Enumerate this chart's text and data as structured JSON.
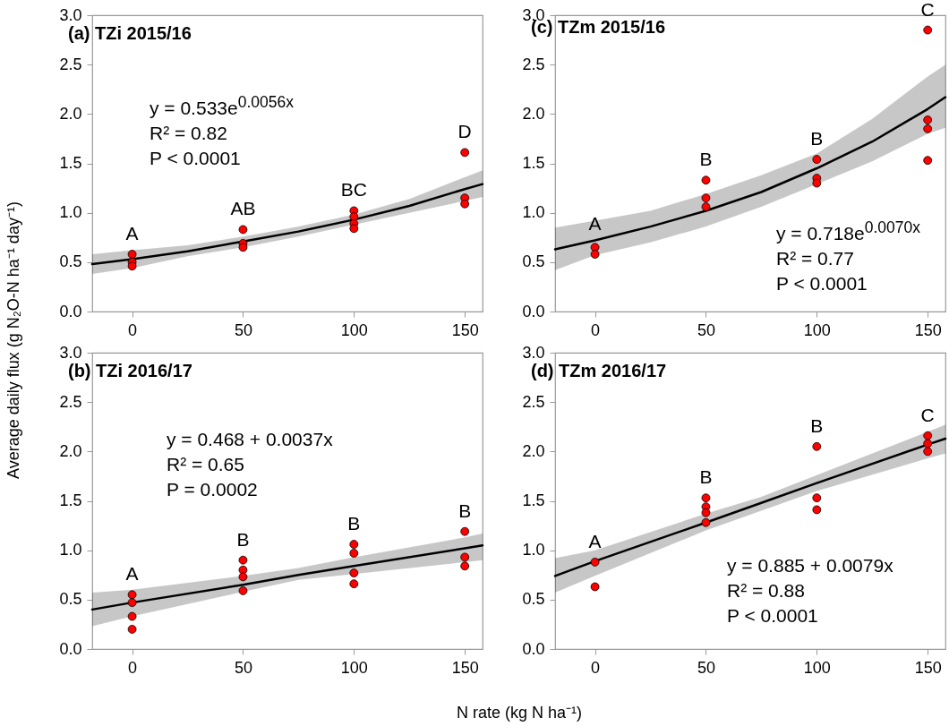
{
  "chart_data": [
    {
      "type": "scatter",
      "title": "(a) TZi 2015/16",
      "ylabel": "Average daily flux (g N₂O-N ha⁻¹ day⁻¹)",
      "xlim": [
        -18,
        158
      ],
      "xticks": [
        0,
        50,
        100,
        150
      ],
      "ylim": [
        0,
        3
      ],
      "yticks": [
        {
          "value": 0,
          "label": "0.0"
        },
        {
          "value": 0.5,
          "label": "0.5"
        },
        {
          "value": 1,
          "label": "1.0"
        },
        {
          "value": 1.5,
          "label": "1.5"
        },
        {
          "value": 2,
          "label": "2.0"
        },
        {
          "value": 2.5,
          "label": "2.5"
        },
        {
          "value": 3,
          "label": "3.0"
        }
      ],
      "grid": false,
      "series": [
        {
          "type": "line",
          "color": "#000000",
          "x": [
            -18,
            0,
            25,
            50,
            75,
            100,
            125,
            150,
            158
          ],
          "values": [
            0.48,
            0.53,
            0.61,
            0.71,
            0.81,
            0.93,
            1.07,
            1.24,
            1.29
          ],
          "lower": [
            0.38,
            0.44,
            0.56,
            0.65,
            0.76,
            0.88,
            1.0,
            1.12,
            1.16
          ],
          "upper": [
            0.58,
            0.62,
            0.67,
            0.76,
            0.86,
            0.98,
            1.14,
            1.36,
            1.43
          ]
        },
        {
          "type": "scatter",
          "marker": "circle",
          "color": "#ff0000",
          "x": [
            0,
            0,
            0,
            50,
            50,
            50,
            100,
            100,
            100,
            100,
            150,
            150,
            150
          ],
          "values": [
            0.58,
            0.5,
            0.46,
            0.83,
            0.69,
            0.65,
            1.02,
            0.96,
            0.89,
            0.84,
            1.61,
            1.15,
            1.09
          ]
        }
      ],
      "annotations": [
        {
          "text": "A",
          "x": 0,
          "y": 0.58
        },
        {
          "text": "AB",
          "x": 50,
          "y": 0.83
        },
        {
          "text": "BC",
          "x": 100,
          "y": 1.02
        },
        {
          "text": "D",
          "x": 150,
          "y": 1.61
        },
        "y = 0.533e$^{0.0056x}$",
        "R² = 0.82",
        "P < 0.0001"
      ]
    },
    {
      "type": "scatter",
      "title": "(c) TZm 2015/16",
      "xlim": [
        -18,
        158
      ],
      "xticks": [
        0,
        50,
        100,
        150
      ],
      "ylim": [
        0,
        3
      ],
      "yticks": [
        {
          "value": 0,
          "label": "0.0"
        },
        {
          "value": 0.5,
          "label": "0.5"
        },
        {
          "value": 1,
          "label": "1.0"
        },
        {
          "value": 1.5,
          "label": "1.5"
        },
        {
          "value": 2,
          "label": "2.0"
        },
        {
          "value": 2.5,
          "label": "2.5"
        },
        {
          "value": 3,
          "label": "3.0"
        }
      ],
      "grid": false,
      "series": [
        {
          "type": "line",
          "color": "#000000",
          "x": [
            -18,
            0,
            25,
            50,
            75,
            100,
            125,
            150,
            158
          ],
          "values": [
            0.63,
            0.72,
            0.86,
            1.02,
            1.21,
            1.45,
            1.72,
            2.05,
            2.17
          ],
          "lower": [
            0.42,
            0.57,
            0.7,
            0.86,
            1.06,
            1.29,
            1.52,
            1.8,
            1.86
          ],
          "upper": [
            0.85,
            0.92,
            1.02,
            1.19,
            1.38,
            1.6,
            1.95,
            2.38,
            2.5
          ]
        },
        {
          "type": "scatter",
          "marker": "circle",
          "color": "#ff0000",
          "x": [
            0,
            0,
            50,
            50,
            50,
            100,
            100,
            100,
            150,
            150,
            150,
            150
          ],
          "values": [
            0.65,
            0.58,
            1.33,
            1.15,
            1.06,
            1.54,
            1.35,
            1.3,
            2.85,
            1.94,
            1.85,
            1.53
          ]
        }
      ],
      "annotations": [
        {
          "text": "A",
          "x": 0,
          "y": 0.68
        },
        {
          "text": "B",
          "x": 50,
          "y": 1.33
        },
        {
          "text": "B",
          "x": 100,
          "y": 1.54
        },
        {
          "text": "C",
          "x": 150,
          "y": 2.85
        },
        "y = 0.718e$^{0.0070x}$",
        "R² = 0.77",
        "P < 0.0001"
      ]
    },
    {
      "type": "scatter",
      "title": "(b) TZi 2016/17",
      "xlabel": "N rate (kg N ha⁻¹)",
      "xlim": [
        -18,
        158
      ],
      "xticks": [
        0,
        50,
        100,
        150
      ],
      "ylim": [
        0,
        3
      ],
      "yticks": [
        {
          "value": 0,
          "label": "0.0"
        },
        {
          "value": 0.5,
          "label": "0.5"
        },
        {
          "value": 1,
          "label": "1.0"
        },
        {
          "value": 1.5,
          "label": "1.5"
        },
        {
          "value": 2,
          "label": "2.0"
        },
        {
          "value": 2.5,
          "label": "2.5"
        },
        {
          "value": 3,
          "label": "3.0"
        }
      ],
      "grid": false,
      "series": [
        {
          "type": "line",
          "color": "#000000",
          "x": [
            -18,
            0,
            50,
            75,
            100,
            150,
            158
          ],
          "values": [
            0.4,
            0.47,
            0.65,
            0.75,
            0.84,
            1.02,
            1.05
          ],
          "lower": [
            0.23,
            0.33,
            0.58,
            0.7,
            0.76,
            0.88,
            0.9
          ],
          "upper": [
            0.57,
            0.6,
            0.74,
            0.82,
            0.93,
            1.13,
            1.17
          ]
        },
        {
          "type": "scatter",
          "marker": "circle",
          "color": "#ff0000",
          "x": [
            0,
            0,
            0,
            0,
            50,
            50,
            50,
            50,
            100,
            100,
            100,
            100,
            150,
            150,
            150
          ],
          "values": [
            0.55,
            0.47,
            0.33,
            0.2,
            0.9,
            0.8,
            0.73,
            0.59,
            1.06,
            0.97,
            0.77,
            0.66,
            1.19,
            0.93,
            0.84
          ]
        }
      ],
      "annotations": [
        {
          "text": "A",
          "x": 0,
          "y": 0.55
        },
        {
          "text": "B",
          "x": 50,
          "y": 0.9
        },
        {
          "text": "B",
          "x": 100,
          "y": 1.06
        },
        {
          "text": "B",
          "x": 150,
          "y": 1.19
        },
        "y = 0.468 + 0.0037x",
        "R² = 0.65",
        "P = 0.0002"
      ]
    },
    {
      "type": "scatter",
      "title": "(d) TZm 2016/17",
      "xlim": [
        -18,
        158
      ],
      "xticks": [
        0,
        50,
        100,
        150
      ],
      "ylim": [
        0,
        3
      ],
      "yticks": [
        {
          "value": 0,
          "label": "0.0"
        },
        {
          "value": 0.5,
          "label": "0.5"
        },
        {
          "value": 1,
          "label": "1.0"
        },
        {
          "value": 1.5,
          "label": "1.5"
        },
        {
          "value": 2,
          "label": "2.0"
        },
        {
          "value": 2.5,
          "label": "2.5"
        },
        {
          "value": 3,
          "label": "3.0"
        }
      ],
      "grid": false,
      "series": [
        {
          "type": "line",
          "color": "#000000",
          "x": [
            -18,
            0,
            50,
            75,
            100,
            150,
            158
          ],
          "values": [
            0.74,
            0.89,
            1.28,
            1.48,
            1.68,
            2.07,
            2.13
          ],
          "lower": [
            0.57,
            0.74,
            1.2,
            1.4,
            1.6,
            1.93,
            1.98
          ],
          "upper": [
            0.92,
            1.0,
            1.37,
            1.54,
            1.76,
            2.2,
            2.27
          ]
        },
        {
          "type": "scatter",
          "marker": "circle",
          "color": "#ff0000",
          "x": [
            0,
            0,
            50,
            50,
            50,
            50,
            100,
            100,
            100,
            150,
            150,
            150
          ],
          "values": [
            0.88,
            0.63,
            1.53,
            1.44,
            1.38,
            1.28,
            2.05,
            1.53,
            1.41,
            2.16,
            2.08,
            2.0
          ]
        }
      ],
      "annotations": [
        {
          "text": "A",
          "x": 0,
          "y": 0.88
        },
        {
          "text": "B",
          "x": 50,
          "y": 1.53
        },
        {
          "text": "B",
          "x": 100,
          "y": 2.05
        },
        {
          "text": "C",
          "x": 150,
          "y": 2.16
        },
        "y = 0.885 + 0.0079x",
        "R² = 0.88",
        "P < 0.0001"
      ]
    }
  ]
}
